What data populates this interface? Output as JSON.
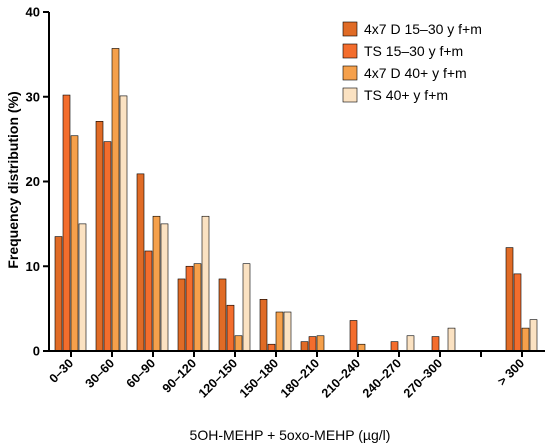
{
  "chart_data": {
    "type": "bar",
    "title": "",
    "xlabel": "5OH-MEHP + 5oxo-MEHP (µg/l)",
    "ylabel": "Frequency distribution (%)",
    "ylim": [
      0,
      40
    ],
    "yticks": [
      "0",
      "10",
      "20",
      "30",
      "40"
    ],
    "categories": [
      "0–30",
      "30–60",
      "60–90",
      "90–120",
      "120–150",
      "150–180",
      "180–210",
      "210–240",
      "240–270",
      "270–300",
      "",
      "> 300"
    ],
    "legend_position": "top-right",
    "grid": false,
    "series": [
      {
        "name": "4x7 D 15–30 y f+m",
        "color": "#e06b26",
        "values": [
          13.5,
          27.1,
          20.9,
          8.5,
          8.5,
          6.1,
          1.1,
          0,
          0,
          0,
          0,
          12.2
        ]
      },
      {
        "name": "TS 15–30 y f+m",
        "color": "#f36d2d",
        "values": [
          30.2,
          24.7,
          11.8,
          10.0,
          5.4,
          0.8,
          1.7,
          3.6,
          1.1,
          1.7,
          0,
          9.1
        ]
      },
      {
        "name": "4x7 D 40+ y  f+m",
        "color": "#f5a04b",
        "values": [
          25.4,
          35.7,
          15.9,
          10.3,
          1.8,
          4.6,
          1.8,
          0.8,
          0,
          0,
          0,
          2.7
        ]
      },
      {
        "name": "TS 40+ y f+m",
        "color": "#fbe2c2",
        "values": [
          15.0,
          30.1,
          15.0,
          15.9,
          10.3,
          4.6,
          0,
          0,
          1.8,
          2.7,
          0,
          3.7
        ]
      }
    ]
  }
}
